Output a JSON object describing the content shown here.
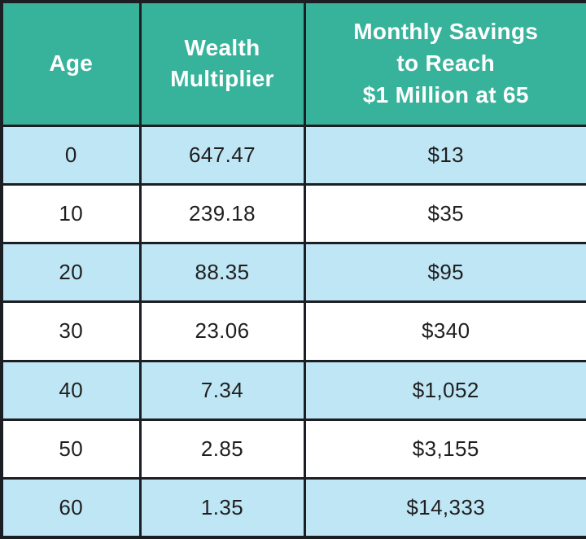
{
  "colors": {
    "header_bg": "#38b39b",
    "header_text": "#ffffff",
    "row_alt_bg": "#bfe6f5",
    "row_plain_bg": "#ffffff",
    "cell_text": "#1f1f1f",
    "border": "#1b1f24"
  },
  "table": {
    "headers": {
      "age": "Age",
      "multiplier": "Wealth\nMultiplier",
      "savings": "Monthly Savings\nto Reach\n$1 Million at 65"
    }
  },
  "chart_data": {
    "type": "table",
    "columns": [
      "Age",
      "Wealth Multiplier",
      "Monthly Savings to Reach $1 Million at 65"
    ],
    "rows": [
      [
        "0",
        "647.47",
        "$13"
      ],
      [
        "10",
        "239.18",
        "$35"
      ],
      [
        "20",
        "88.35",
        "$95"
      ],
      [
        "30",
        "23.06",
        "$340"
      ],
      [
        "40",
        "7.34",
        "$1,052"
      ],
      [
        "50",
        "2.85",
        "$3,155"
      ],
      [
        "60",
        "1.35",
        "$14,333"
      ]
    ]
  }
}
